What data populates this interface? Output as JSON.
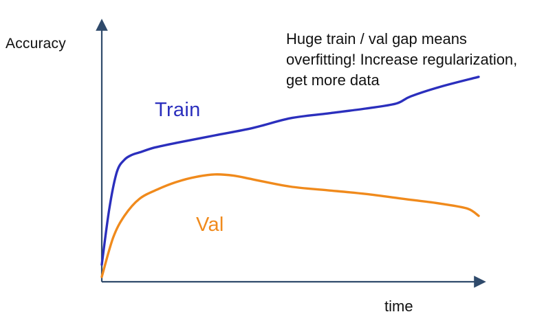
{
  "chart_data": {
    "type": "line",
    "xlabel": "time",
    "ylabel": "Accuracy",
    "annotation": [
      "Huge train / val gap means",
      "overfitting! Increase regularization,",
      "get more data"
    ],
    "xlim": [
      0,
      100
    ],
    "ylim": [
      0,
      100
    ],
    "grid": false,
    "legend": "inline labels",
    "series": [
      {
        "name": "Train",
        "color": "#2b2fbd",
        "x": [
          0,
          2,
          4,
          6,
          8,
          10,
          14,
          20,
          30,
          40,
          50,
          60,
          70,
          78,
          82,
          90,
          100
        ],
        "y": [
          7,
          30,
          45,
          50,
          52,
          53,
          55,
          57,
          60,
          63,
          67,
          69,
          71,
          73,
          76,
          80,
          84
        ]
      },
      {
        "name": "Val",
        "color": "#f08a1c",
        "x": [
          0,
          3,
          6,
          10,
          15,
          20,
          25,
          30,
          35,
          40,
          50,
          60,
          70,
          80,
          90,
          97,
          100
        ],
        "y": [
          2,
          18,
          27,
          34,
          38,
          41,
          43,
          44,
          43.5,
          42,
          39,
          37.5,
          36,
          34,
          32,
          30,
          27
        ]
      }
    ]
  }
}
